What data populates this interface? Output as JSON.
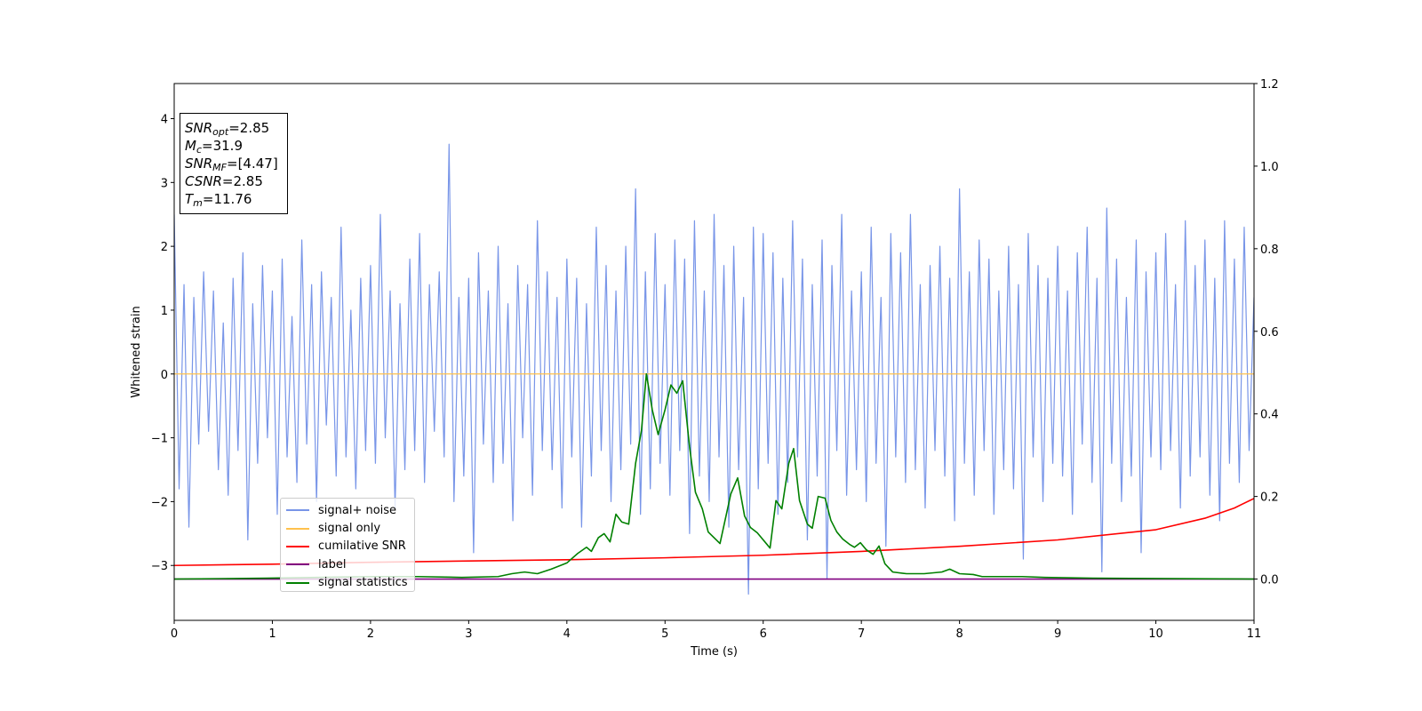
{
  "chart_data": {
    "type": "line",
    "xlabel": "Time (s)",
    "ylabel": "Whitened strain",
    "xlim": [
      0,
      11
    ],
    "ylim": [
      -3.86,
      4.55
    ],
    "y2lim": [
      -0.1,
      1.2
    ],
    "xticks": [
      0,
      1,
      2,
      3,
      4,
      5,
      6,
      7,
      8,
      9,
      10,
      11
    ],
    "yticks": [
      {
        "value": -3,
        "label": "−3"
      },
      {
        "value": -2,
        "label": "−2"
      },
      {
        "value": -1,
        "label": "−1"
      },
      0,
      1,
      2,
      3,
      4
    ],
    "y2ticks": [
      {
        "value": 0,
        "label": "0.0"
      },
      0.2,
      0.4,
      0.6,
      0.8,
      {
        "value": 1,
        "label": "1.0"
      },
      1.2
    ],
    "legend": "lower left",
    "annotations": [
      {
        "symbol": "SNR",
        "subscript": "opt",
        "text": "=2.85"
      },
      {
        "symbol": "M",
        "subscript": "c",
        "text": "=31.9"
      },
      {
        "symbol": "SNR",
        "subscript": "MF",
        "text": "=[4.47]"
      },
      {
        "symbol": "CSNR",
        "text": "=2.85"
      },
      {
        "symbol": "T",
        "subscript": "m",
        "text": "=11.76"
      }
    ],
    "series": [
      {
        "name": "signal+ noise",
        "color": "#7895e8",
        "x": [
          0,
          0.05,
          0.1,
          0.15,
          0.2,
          0.25,
          0.3,
          0.35,
          0.4,
          0.45,
          0.5,
          0.55,
          0.6,
          0.65,
          0.7,
          0.75,
          0.8,
          0.85,
          0.9,
          0.95,
          1,
          1.05,
          1.1,
          1.15,
          1.2,
          1.25,
          1.3,
          1.35,
          1.4,
          1.45,
          1.5,
          1.55,
          1.6,
          1.65,
          1.7,
          1.75,
          1.8,
          1.85,
          1.9,
          1.95,
          2,
          2.05,
          2.1,
          2.15,
          2.2,
          2.25,
          2.3,
          2.35,
          2.4,
          2.45,
          2.5,
          2.55,
          2.6,
          2.65,
          2.7,
          2.75,
          2.8,
          2.85,
          2.9,
          2.95,
          3,
          3.05,
          3.1,
          3.15,
          3.2,
          3.25,
          3.3,
          3.35,
          3.4,
          3.45,
          3.5,
          3.55,
          3.6,
          3.65,
          3.7,
          3.75,
          3.8,
          3.85,
          3.9,
          3.95,
          4,
          4.05,
          4.1,
          4.15,
          4.2,
          4.25,
          4.3,
          4.35,
          4.4,
          4.45,
          4.5,
          4.55,
          4.6,
          4.65,
          4.7,
          4.75,
          4.8,
          4.85,
          4.9,
          4.95,
          5,
          5.05,
          5.1,
          5.15,
          5.2,
          5.25,
          5.3,
          5.35,
          5.4,
          5.45,
          5.5,
          5.55,
          5.6,
          5.65,
          5.7,
          5.75,
          5.8,
          5.85,
          5.9,
          5.95,
          6,
          6.05,
          6.1,
          6.15,
          6.2,
          6.25,
          6.3,
          6.35,
          6.4,
          6.45,
          6.5,
          6.55,
          6.6,
          6.65,
          6.7,
          6.75,
          6.8,
          6.85,
          6.9,
          6.95,
          7,
          7.05,
          7.1,
          7.15,
          7.2,
          7.25,
          7.3,
          7.35,
          7.4,
          7.45,
          7.5,
          7.55,
          7.6,
          7.65,
          7.7,
          7.75,
          7.8,
          7.85,
          7.9,
          7.95,
          8,
          8.05,
          8.1,
          8.15,
          8.2,
          8.25,
          8.3,
          8.35,
          8.4,
          8.45,
          8.5,
          8.55,
          8.6,
          8.65,
          8.7,
          8.75,
          8.8,
          8.85,
          8.9,
          8.95,
          9,
          9.05,
          9.1,
          9.15,
          9.2,
          9.25,
          9.3,
          9.35,
          9.4,
          9.45,
          9.5,
          9.55,
          9.6,
          9.65,
          9.7,
          9.75,
          9.8,
          9.85,
          9.9,
          9.95,
          10,
          10.05,
          10.1,
          10.15,
          10.2,
          10.25,
          10.3,
          10.35,
          10.4,
          10.45,
          10.5,
          10.55,
          10.6,
          10.65,
          10.7,
          10.75,
          10.8,
          10.85,
          10.9,
          10.95,
          11
        ],
        "values": [
          2.5,
          -1.8,
          1.4,
          -2.4,
          1.2,
          -1.1,
          1.6,
          -0.9,
          1.3,
          -1.5,
          0.8,
          -1.9,
          1.5,
          -1.2,
          1.9,
          -2.6,
          1.1,
          -1.4,
          1.7,
          -1.0,
          1.3,
          -2.2,
          1.8,
          -1.3,
          0.9,
          -1.7,
          2.1,
          -1.1,
          1.4,
          -2.0,
          1.6,
          -0.8,
          1.2,
          -1.6,
          2.3,
          -1.3,
          1.0,
          -1.8,
          1.5,
          -1.2,
          1.7,
          -1.4,
          2.5,
          -1.0,
          1.3,
          -2.1,
          1.1,
          -1.5,
          1.8,
          -1.2,
          2.2,
          -1.7,
          1.4,
          -0.9,
          1.6,
          -1.3,
          3.6,
          -2.0,
          1.2,
          -1.6,
          1.5,
          -2.8,
          1.9,
          -1.1,
          1.3,
          -1.7,
          2.0,
          -1.4,
          1.1,
          -2.3,
          1.7,
          -1.0,
          1.4,
          -1.9,
          2.4,
          -1.2,
          1.6,
          -1.5,
          1.2,
          -2.1,
          1.8,
          -1.3,
          1.5,
          -2.4,
          1.1,
          -1.6,
          2.3,
          -1.2,
          1.7,
          -2.0,
          1.3,
          -1.5,
          2.0,
          -1.1,
          2.9,
          -2.2,
          1.6,
          -1.8,
          2.2,
          -1.4,
          1.4,
          -1.9,
          2.1,
          -1.2,
          1.8,
          -2.5,
          2.4,
          -1.6,
          1.3,
          -2.0,
          2.5,
          -1.3,
          1.7,
          -2.4,
          2.0,
          -1.5,
          1.2,
          -3.45,
          2.3,
          -1.8,
          2.2,
          -1.4,
          1.9,
          -2.2,
          1.5,
          -1.7,
          2.4,
          -1.3,
          1.8,
          -2.6,
          1.4,
          -1.6,
          2.1,
          -3.2,
          1.7,
          -1.2,
          2.5,
          -1.9,
          1.3,
          -1.5,
          1.6,
          -2.0,
          2.3,
          -1.4,
          1.2,
          -2.7,
          2.2,
          -1.3,
          1.9,
          -1.7,
          2.5,
          -1.5,
          1.4,
          -2.1,
          1.7,
          -1.2,
          2.0,
          -1.6,
          1.5,
          -2.3,
          2.9,
          -1.4,
          1.6,
          -1.9,
          2.1,
          -1.2,
          1.8,
          -2.2,
          1.3,
          -1.5,
          2.0,
          -1.8,
          1.4,
          -2.9,
          2.2,
          -1.3,
          1.7,
          -2.0,
          1.5,
          -1.4,
          2.0,
          -1.6,
          1.3,
          -2.2,
          1.9,
          -1.1,
          2.3,
          -1.7,
          1.5,
          -3.1,
          2.6,
          -1.4,
          1.8,
          -2.0,
          1.2,
          -1.6,
          2.1,
          -2.8,
          1.6,
          -1.3,
          1.9,
          -1.5,
          2.2,
          -1.2,
          1.4,
          -2.1,
          2.4,
          -1.6,
          1.7,
          -1.3,
          2.1,
          -1.9,
          1.5,
          -2.3,
          2.4,
          -1.4,
          1.8,
          -1.7,
          2.3,
          -1.2,
          1.2
        ]
      },
      {
        "name": "signal only",
        "color": "#ffc14d",
        "x": [
          0,
          11
        ],
        "values": [
          0,
          0
        ]
      },
      {
        "name": "cumilative SNR",
        "color": "#ff0000",
        "x": [
          0,
          1,
          2,
          3,
          4,
          5,
          6,
          7,
          8,
          9,
          10,
          10.5,
          10.8,
          11
        ],
        "values": [
          -3.0,
          -2.98,
          -2.95,
          -2.93,
          -2.91,
          -2.88,
          -2.84,
          -2.78,
          -2.7,
          -2.6,
          -2.44,
          -2.26,
          -2.1,
          -1.95
        ]
      },
      {
        "name": "label",
        "color": "#800080",
        "axis": "y2",
        "x": [
          0,
          11
        ],
        "values": [
          0,
          0
        ]
      },
      {
        "name": "signal statistics",
        "color": "#008000",
        "axis": "y2",
        "x": [
          0,
          0.94,
          2.03,
          2.48,
          2.93,
          3.3,
          3.44,
          3.57,
          3.7,
          3.84,
          4.0,
          4.11,
          4.2,
          4.25,
          4.32,
          4.38,
          4.44,
          4.5,
          4.56,
          4.63,
          4.7,
          4.76,
          4.81,
          4.87,
          4.93,
          5.0,
          5.06,
          5.12,
          5.18,
          5.25,
          5.31,
          5.38,
          5.44,
          5.56,
          5.67,
          5.74,
          5.81,
          5.87,
          5.94,
          6.07,
          6.13,
          6.19,
          6.26,
          6.31,
          6.37,
          6.45,
          6.5,
          6.56,
          6.63,
          6.69,
          6.75,
          6.81,
          6.88,
          6.93,
          6.99,
          7.05,
          7.12,
          7.18,
          7.24,
          7.32,
          7.46,
          7.64,
          7.82,
          7.9,
          8.0,
          8.14,
          8.23,
          8.64,
          8.87,
          9.36,
          11
        ],
        "values": [
          0,
          0.002,
          0.006,
          0.006,
          0.004,
          0.006,
          0.013,
          0.017,
          0.013,
          0.024,
          0.039,
          0.062,
          0.077,
          0.067,
          0.1,
          0.11,
          0.09,
          0.157,
          0.138,
          0.133,
          0.28,
          0.36,
          0.497,
          0.41,
          0.35,
          0.41,
          0.47,
          0.45,
          0.48,
          0.32,
          0.21,
          0.17,
          0.114,
          0.086,
          0.206,
          0.245,
          0.153,
          0.125,
          0.112,
          0.075,
          0.19,
          0.17,
          0.28,
          0.316,
          0.19,
          0.133,
          0.123,
          0.2,
          0.196,
          0.142,
          0.114,
          0.097,
          0.084,
          0.077,
          0.088,
          0.071,
          0.06,
          0.08,
          0.037,
          0.017,
          0.013,
          0.013,
          0.017,
          0.024,
          0.013,
          0.011,
          0.006,
          0.006,
          0.004,
          0.002,
          0
        ]
      }
    ]
  }
}
